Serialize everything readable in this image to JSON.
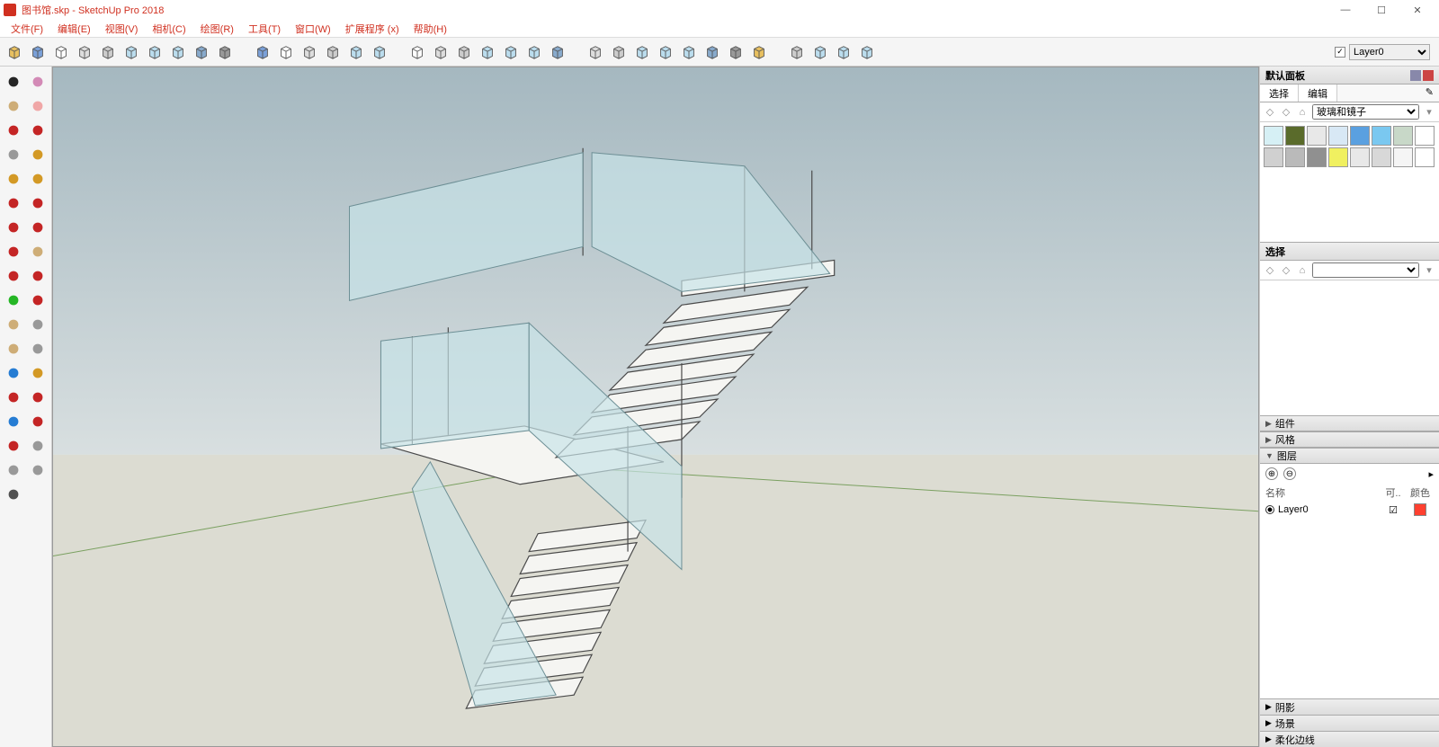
{
  "window": {
    "title": "图书馆.skp - SketchUp Pro 2018",
    "min_icon": "—",
    "max_icon": "☐",
    "close_icon": "✕"
  },
  "menu": {
    "items": [
      "文件(F)",
      "编辑(E)",
      "视图(V)",
      "相机(C)",
      "绘图(R)",
      "工具(T)",
      "窗口(W)",
      "扩展程序 (x)",
      "帮助(H)"
    ]
  },
  "top_toolbar": {
    "groups": [
      [
        "cube-yellow",
        "cube-blue",
        "empty",
        "doc",
        "docs",
        "cube-wire-1",
        "cube-wire-2",
        "cube-wire-3",
        "cube-shaded",
        "cube-gray"
      ],
      [
        "house-1",
        "house-box",
        "house-front",
        "house-open",
        "house-top",
        "house-iso"
      ],
      [
        "wrap-1",
        "wrap-2",
        "wrap-3",
        "wrap-4",
        "wrap-5",
        "wrap-6",
        "wrap-7"
      ],
      [
        "grid-red",
        "grid-blue",
        "stack-1",
        "stack-2",
        "stack-3",
        "stack-4",
        "stack-5",
        "stack-brown"
      ],
      [
        "axis",
        "box3d-1",
        "box3d-2",
        "box3d-3"
      ]
    ],
    "layer_check": "✓",
    "layer_selected": "Layer0"
  },
  "left_toolbar": {
    "rows": [
      [
        "select-arrow",
        "lasso"
      ],
      [
        "paint-brush",
        "eraser"
      ],
      [
        "pencil",
        "freehand"
      ],
      [
        "rect",
        "rot-rect"
      ],
      [
        "circle",
        "polygon"
      ],
      [
        "arc",
        "arc2"
      ],
      [
        "arc3",
        "pie"
      ],
      [
        "move",
        "pushpull"
      ],
      [
        "rotate",
        "followme"
      ],
      [
        "scale",
        "offset"
      ],
      [
        "tape",
        "dim-tool"
      ],
      [
        "text",
        "protractor"
      ],
      [
        "axes",
        "section"
      ],
      [
        "orbit",
        "pan"
      ],
      [
        "zoom",
        "zoom-window"
      ],
      [
        "zoom-extents",
        "prev-view"
      ],
      [
        "position-camera",
        "look-around"
      ],
      [
        "walk",
        ""
      ]
    ]
  },
  "right_panel": {
    "header": "默认面板",
    "tab1": "选择",
    "tab2": "编辑",
    "material_dropdown": "玻璃和镜子",
    "swatch_colors": [
      "#d6f0f5",
      "#5a6b2b",
      "#e8e8e8",
      "#d8e8f5",
      "#5aa0e0",
      "#7ac8f0",
      "#c8d8c8",
      "#ffffff",
      "#d0d0d0",
      "#bababa",
      "#909090",
      "#f0f060",
      "#e8e8e8",
      "#d8d8d8",
      "#f5f5f5",
      "#ffffff"
    ],
    "select_header": "选择",
    "sections": {
      "component": "组件",
      "style": "风格",
      "layer": "图层"
    },
    "layer_cols": {
      "name": "名称",
      "vis": "可..",
      "color": "颜色"
    },
    "layer0": "Layer0",
    "layer0_color": "#ff5040",
    "bottom_sections": [
      "阴影",
      "场景",
      "柔化边线"
    ],
    "plus": "⊕",
    "minus": "⊖",
    "menu_icon": "▸"
  },
  "viewport_scene": {
    "type": "3d-scene",
    "background_sky": "#afc0c7",
    "background_ground": "#dcdcd2",
    "horizon_y": 0.57,
    "axis_colors": {
      "x_neg": "#7aa060",
      "x_pos": "#7aa060"
    },
    "glass_color": "#c7e3e7",
    "glass_opacity": 0.7,
    "stair_line": "#4a4a4a",
    "stair_fill": "#f5f5f2"
  }
}
